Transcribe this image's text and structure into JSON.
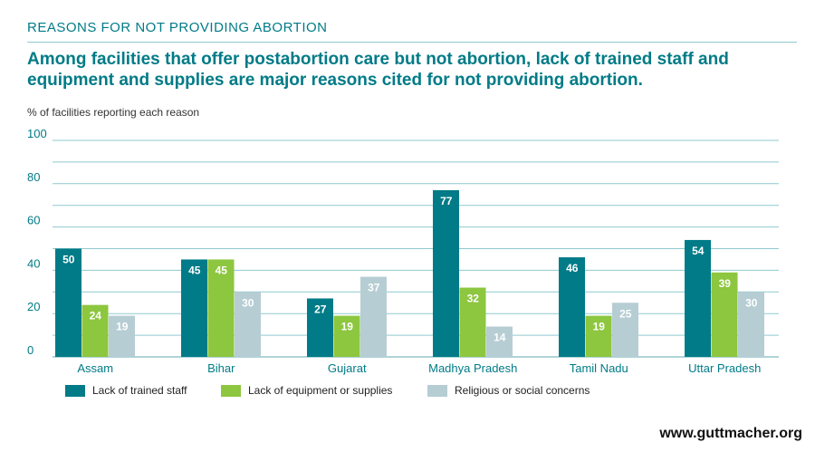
{
  "header": {
    "kicker": "REASONS FOR NOT PROVIDING ABORTION",
    "headline": "Among facilities that offer postabortion care but not abortion, lack of trained staff and equipment and supplies are major reasons cited for not providing abortion."
  },
  "footer": {
    "url": "www.guttmacher.org"
  },
  "colors": {
    "teal": "#007b87",
    "green": "#8dc63f",
    "gray": "#b6cdd4",
    "grid": "#8fc9cf"
  },
  "chart_data": {
    "type": "bar",
    "ylabel": "% of facilities reporting each reason",
    "ylim": [
      0,
      100
    ],
    "yticks": [
      0,
      20,
      40,
      60,
      80,
      100
    ],
    "grid": true,
    "legend_position": "bottom",
    "categories": [
      "Assam",
      "Bihar",
      "Gujarat",
      "Madhya Pradesh",
      "Tamil Nadu",
      "Uttar Pradesh"
    ],
    "series": [
      {
        "name": "Lack of trained staff",
        "color": "#007b87",
        "values": [
          50,
          45,
          27,
          77,
          46,
          54
        ]
      },
      {
        "name": "Lack of equipment or supplies",
        "color": "#8dc63f",
        "values": [
          24,
          45,
          19,
          32,
          19,
          39
        ]
      },
      {
        "name": "Religious or social concerns",
        "color": "#b6cdd4",
        "values": [
          19,
          30,
          37,
          14,
          25,
          30
        ]
      }
    ]
  }
}
